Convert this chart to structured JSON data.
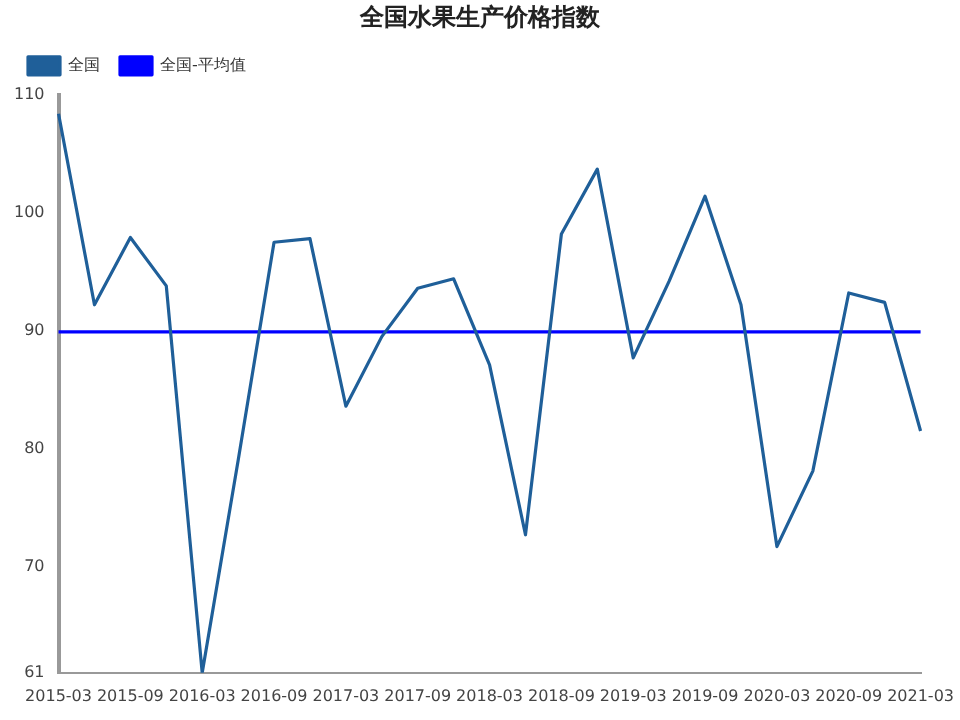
{
  "chart_data": {
    "type": "line",
    "title": "全国水果生产价格指数",
    "categories": [
      "2015-03",
      null,
      "2015-09",
      null,
      "2016-03",
      null,
      "2016-09",
      null,
      "2017-03",
      null,
      "2017-09",
      null,
      "2018-03",
      null,
      "2018-09",
      null,
      "2019-03",
      null,
      "2019-09",
      null,
      "2020-03",
      null,
      "2020-09",
      null,
      "2021-03"
    ],
    "series": [
      {
        "name": "全国",
        "color": "#1f5f99",
        "values": [
          108.4,
          92.2,
          97.9,
          93.8,
          61,
          79,
          97.5,
          97.8,
          83.6,
          89.5,
          93.6,
          94.4,
          87.1,
          72.7,
          98.2,
          103.7,
          87.7,
          94.2,
          101.4,
          92.2,
          71.7,
          78.1,
          93.2,
          92.4,
          81.5
        ]
      },
      {
        "name": "全国-平均值",
        "color": "#0000ff",
        "values": [
          89.9,
          89.9,
          89.9,
          89.9,
          89.9,
          89.9,
          89.9,
          89.9,
          89.9,
          89.9,
          89.9,
          89.9,
          89.9,
          89.9,
          89.9,
          89.9,
          89.9,
          89.9,
          89.9,
          89.9,
          89.9,
          89.9,
          89.9,
          89.9,
          89.9
        ]
      }
    ],
    "ylim": [
      61,
      110
    ],
    "yticks": [
      61,
      70,
      80,
      90,
      100,
      110
    ],
    "grid": false,
    "legend": "top left",
    "marker": "none",
    "line_style": "solid"
  }
}
